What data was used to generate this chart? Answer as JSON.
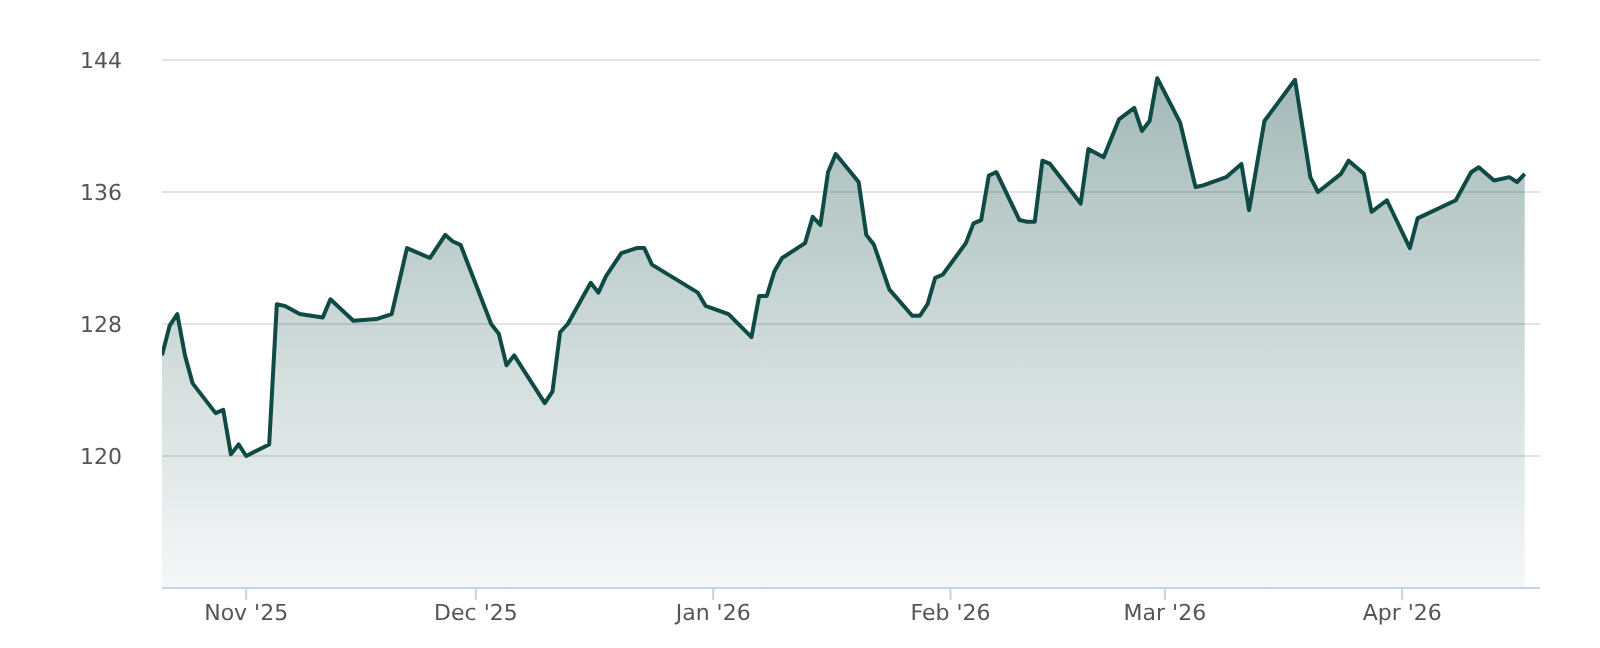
{
  "chart_data": {
    "type": "area",
    "grid": "y",
    "xlim": [
      "2025-10-21",
      "2026-04-19"
    ],
    "ylim": [
      112,
      144
    ],
    "yticks": [
      120,
      128,
      136,
      144
    ],
    "xticks": [
      {
        "value": "2025-11-01",
        "label": "Nov '25"
      },
      {
        "value": "2025-12-01",
        "label": "Dec '25"
      },
      {
        "value": "2026-01-01",
        "label": "Jan '26"
      },
      {
        "value": "2026-02-01",
        "label": "Feb '26"
      },
      {
        "value": "2026-03-01",
        "label": "Mar '26"
      },
      {
        "value": "2026-04-01",
        "label": "Apr '26"
      }
    ],
    "x": [
      "2025-10-21",
      "2025-10-22",
      "2025-10-23",
      "2025-10-24",
      "2025-10-25",
      "2025-10-28",
      "2025-10-29",
      "2025-10-30",
      "2025-10-31",
      "2025-11-01",
      "2025-11-04",
      "2025-11-05",
      "2025-11-06",
      "2025-11-08",
      "2025-11-11",
      "2025-11-12",
      "2025-11-15",
      "2025-11-18",
      "2025-11-20",
      "2025-11-22",
      "2025-11-25",
      "2025-11-27",
      "2025-11-28",
      "2025-11-29",
      "2025-12-03",
      "2025-12-04",
      "2025-12-05",
      "2025-12-06",
      "2025-12-10",
      "2025-12-11",
      "2025-12-12",
      "2025-12-13",
      "2025-12-16",
      "2025-12-17",
      "2025-12-18",
      "2025-12-20",
      "2025-12-22",
      "2025-12-23",
      "2025-12-24",
      "2025-12-30",
      "2025-12-31",
      "2026-01-03",
      "2026-01-06",
      "2026-01-07",
      "2026-01-08",
      "2026-01-09",
      "2026-01-10",
      "2026-01-13",
      "2026-01-14",
      "2026-01-15",
      "2026-01-16",
      "2026-01-17",
      "2026-01-20",
      "2026-01-21",
      "2026-01-22",
      "2026-01-24",
      "2026-01-27",
      "2026-01-28",
      "2026-01-29",
      "2026-01-30",
      "2026-01-31",
      "2026-02-03",
      "2026-02-04",
      "2026-02-05",
      "2026-02-06",
      "2026-02-07",
      "2026-02-10",
      "2026-02-11",
      "2026-02-12",
      "2026-02-13",
      "2026-02-14",
      "2026-02-18",
      "2026-02-19",
      "2026-02-21",
      "2026-02-23",
      "2026-02-25",
      "2026-02-26",
      "2026-02-27",
      "2026-02-28",
      "2026-03-03",
      "2026-03-05",
      "2026-03-06",
      "2026-03-09",
      "2026-03-11",
      "2026-03-12",
      "2026-03-14",
      "2026-03-18",
      "2026-03-20",
      "2026-03-21",
      "2026-03-24",
      "2026-03-25",
      "2026-03-27",
      "2026-03-28",
      "2026-03-30",
      "2026-04-02",
      "2026-04-03",
      "2026-04-08",
      "2026-04-10",
      "2026-04-11",
      "2026-04-13",
      "2026-04-15",
      "2026-04-16",
      "2026-04-17"
    ],
    "series": [
      {
        "color": "#0f4a45",
        "values": [
          126.1,
          127.9,
          128.6,
          126.1,
          124.4,
          122.6,
          122.8,
          120.1,
          120.7,
          120.0,
          120.7,
          129.2,
          129.1,
          128.6,
          128.4,
          129.5,
          128.2,
          128.3,
          128.6,
          132.6,
          132.0,
          133.4,
          133.0,
          132.8,
          128.0,
          127.4,
          125.5,
          126.1,
          123.2,
          123.9,
          127.5,
          128.0,
          130.5,
          129.9,
          130.9,
          132.3,
          132.6,
          132.6,
          131.6,
          129.9,
          129.1,
          128.6,
          127.2,
          129.7,
          129.7,
          131.2,
          132.0,
          132.9,
          134.5,
          134.0,
          137.2,
          138.3,
          136.6,
          133.4,
          132.8,
          130.1,
          128.5,
          128.5,
          129.2,
          130.8,
          131.0,
          132.9,
          134.1,
          134.3,
          137.0,
          137.2,
          134.3,
          134.2,
          134.2,
          137.9,
          137.7,
          135.3,
          138.6,
          138.1,
          140.4,
          141.1,
          139.7,
          140.3,
          142.9,
          140.2,
          136.3,
          136.4,
          136.9,
          137.7,
          134.9,
          140.3,
          142.8,
          136.9,
          136.0,
          137.1,
          137.9,
          137.1,
          134.8,
          135.5,
          132.6,
          134.4,
          135.5,
          137.2,
          137.5,
          136.7,
          136.9,
          136.6,
          137.1
        ]
      }
    ]
  }
}
